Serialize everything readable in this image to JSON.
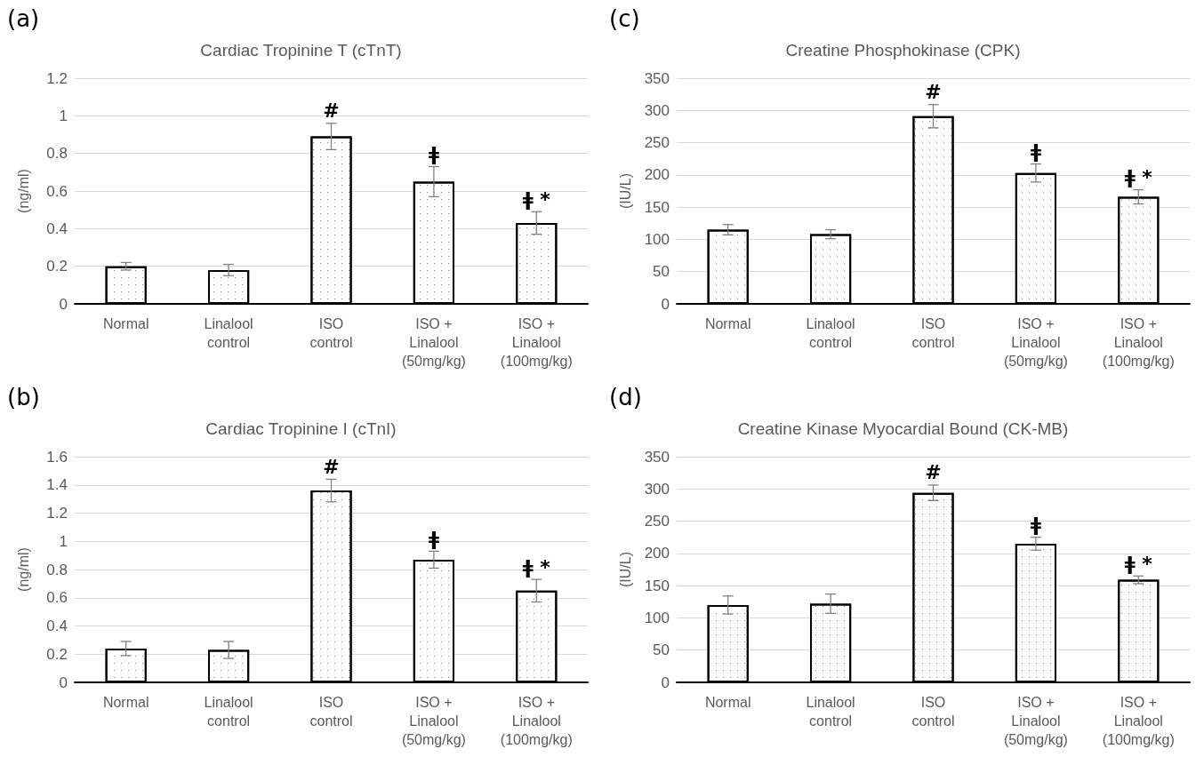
{
  "chart_data": [
    {
      "type": "bar",
      "title": "Cardiac Tropinine T (cTnT)",
      "ylabel": "(ng/ml)",
      "categories": [
        "Normal",
        "Linalool\ncontrol",
        "ISO\ncontrol",
        "ISO +\nLinalool\n(50mg/kg)",
        "ISO +\nLinalool\n(100mg/kg)"
      ],
      "values": [
        0.2,
        0.18,
        0.89,
        0.65,
        0.43
      ],
      "errors": [
        0.02,
        0.03,
        0.07,
        0.08,
        0.06
      ],
      "color": "#ffffff",
      "ylim": [
        0,
        1.2
      ],
      "yticks": [
        0,
        0.2,
        0.4,
        0.6,
        0.8,
        1,
        1.2
      ],
      "grid": "y",
      "annotations": [
        "(a)",
        {
          "text": "#",
          "x": "ISO\ncontrol",
          "y": 0.96
        },
        {
          "text": "ǂ",
          "x": "ISO +\nLinalool\n(50mg/kg)",
          "y": 0.73
        },
        {
          "text": "ǂ *",
          "x": "ISO +\nLinalool\n(100mg/kg)",
          "y": 0.49
        }
      ]
    },
    {
      "type": "bar",
      "title": "Creatine Phosphokinase (CPK)",
      "ylabel": "(IU/L)",
      "categories": [
        "Normal",
        "Linalool\ncontrol",
        "ISO\ncontrol",
        "ISO +\nLinalool\n(50mg/kg)",
        "ISO +\nLinalool\n(100mg/kg)"
      ],
      "values": [
        115,
        108,
        291,
        203,
        166
      ],
      "errors": [
        8,
        7,
        18,
        14,
        11
      ],
      "color": "#ffffff",
      "ylim": [
        0,
        350
      ],
      "yticks": [
        0,
        50,
        100,
        150,
        200,
        250,
        300,
        350
      ],
      "grid": "y",
      "annotations": [
        "(c)",
        {
          "text": "#",
          "x": "ISO\ncontrol",
          "y": 309
        },
        {
          "text": "ǂ",
          "x": "ISO +\nLinalool\n(50mg/kg)",
          "y": 217
        },
        {
          "text": "ǂ *",
          "x": "ISO +\nLinalool\n(100mg/kg)",
          "y": 177
        }
      ]
    },
    {
      "type": "bar",
      "title": "Cardiac Tropinine I (cTnI)",
      "ylabel": "(ng/ml)",
      "categories": [
        "Normal",
        "Linalool\ncontrol",
        "ISO\ncontrol",
        "ISO +\nLinalool\n(50mg/kg)",
        "ISO +\nLinalool\n(100mg/kg)"
      ],
      "values": [
        0.24,
        0.23,
        1.36,
        0.87,
        0.65
      ],
      "errors": [
        0.05,
        0.06,
        0.08,
        0.06,
        0.08
      ],
      "color": "#ffffff",
      "ylim": [
        0,
        1.6
      ],
      "yticks": [
        0,
        0.2,
        0.4,
        0.6,
        0.8,
        1,
        1.2,
        1.4,
        1.6
      ],
      "grid": "y",
      "annotations": [
        "(b)",
        {
          "text": "#",
          "x": "ISO\ncontrol",
          "y": 1.44
        },
        {
          "text": "ǂ",
          "x": "ISO +\nLinalool\n(50mg/kg)",
          "y": 0.93
        },
        {
          "text": "ǂ *",
          "x": "ISO +\nLinalool\n(100mg/kg)",
          "y": 0.73
        }
      ]
    },
    {
      "type": "bar",
      "title": "Creatine Kinase Myocardial Bound (CK-MB)",
      "ylabel": "(IU/L)",
      "categories": [
        "Normal",
        "Linalool\ncontrol",
        "ISO\ncontrol",
        "ISO +\nLinalool\n(50mg/kg)",
        "ISO +\nLinalool\n(100mg/kg)"
      ],
      "values": [
        120,
        122,
        294,
        215,
        159
      ],
      "errors": [
        14,
        15,
        12,
        10,
        6
      ],
      "color": "#ffffff",
      "ylim": [
        0,
        350
      ],
      "yticks": [
        0,
        50,
        100,
        150,
        200,
        250,
        300,
        350
      ],
      "grid": "y",
      "annotations": [
        "(d)",
        {
          "text": "#",
          "x": "ISO\ncontrol",
          "y": 306
        },
        {
          "text": "ǂ",
          "x": "ISO +\nLinalool\n(50mg/kg)",
          "y": 225
        },
        {
          "text": "ǂ *",
          "x": "ISO +\nLinalool\n(100mg/kg)",
          "y": 165
        }
      ]
    }
  ]
}
